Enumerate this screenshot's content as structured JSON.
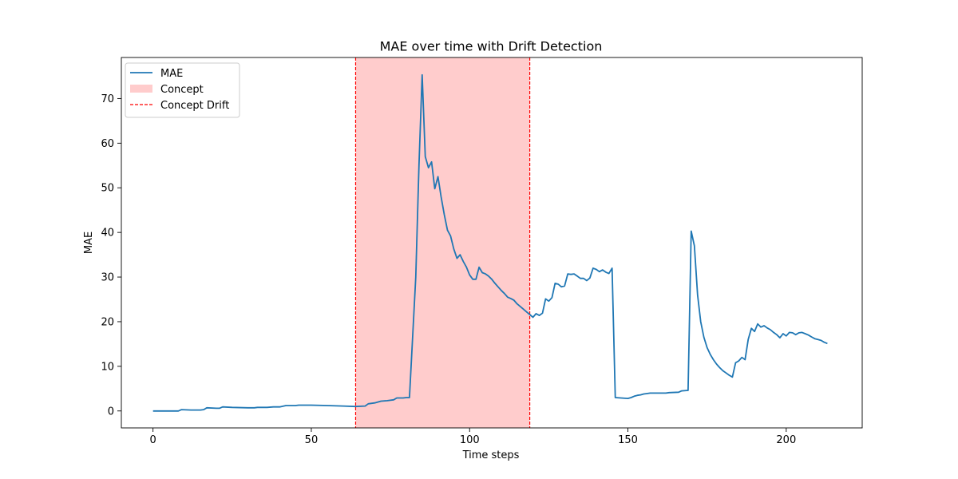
{
  "chart_data": {
    "type": "line",
    "title": "MAE over time with Drift Detection",
    "xlabel": "Time steps",
    "ylabel": "MAE",
    "xlim": [
      -10,
      224
    ],
    "ylim": [
      -3.8,
      79.2
    ],
    "xticks": [
      0,
      50,
      100,
      150,
      200
    ],
    "yticks": [
      0,
      10,
      20,
      30,
      40,
      50,
      60,
      70
    ],
    "grid": false,
    "legend_position": "top-left",
    "legend": {
      "mae": "MAE",
      "concept": "Concept",
      "drift": "Concept Drift"
    },
    "concept_region": {
      "start": 64,
      "end": 119,
      "color": "#ffcccc"
    },
    "drift_lines": [
      64,
      119
    ],
    "drift_color": "#ff0000",
    "series": [
      {
        "name": "MAE",
        "color": "#1f77b4",
        "points": [
          [
            0,
            0.0
          ],
          [
            4,
            0.0
          ],
          [
            8,
            0.0
          ],
          [
            9,
            0.3
          ],
          [
            12,
            0.2
          ],
          [
            15,
            0.2
          ],
          [
            16,
            0.3
          ],
          [
            17,
            0.7
          ],
          [
            20,
            0.6
          ],
          [
            21,
            0.6
          ],
          [
            22,
            0.9
          ],
          [
            25,
            0.8
          ],
          [
            30,
            0.7
          ],
          [
            32,
            0.7
          ],
          [
            33,
            0.8
          ],
          [
            36,
            0.8
          ],
          [
            38,
            0.9
          ],
          [
            40,
            0.9
          ],
          [
            42,
            1.2
          ],
          [
            45,
            1.2
          ],
          [
            46,
            1.3
          ],
          [
            50,
            1.3
          ],
          [
            55,
            1.2
          ],
          [
            60,
            1.1
          ],
          [
            64,
            1.0
          ],
          [
            67,
            1.1
          ],
          [
            68,
            1.6
          ],
          [
            70,
            1.8
          ],
          [
            72,
            2.2
          ],
          [
            74,
            2.3
          ],
          [
            76,
            2.5
          ],
          [
            77,
            2.9
          ],
          [
            79,
            2.9
          ],
          [
            80,
            3.0
          ],
          [
            81,
            3.0
          ],
          [
            83,
            30.0
          ],
          [
            84,
            55.0
          ],
          [
            85,
            75.3
          ],
          [
            86,
            57.0
          ],
          [
            87,
            54.5
          ],
          [
            88,
            55.8
          ],
          [
            89,
            49.8
          ],
          [
            90,
            52.5
          ],
          [
            91,
            48.0
          ],
          [
            92,
            44.0
          ],
          [
            93,
            40.5
          ],
          [
            94,
            39.2
          ],
          [
            95,
            36.3
          ],
          [
            96,
            34.2
          ],
          [
            97,
            35.0
          ],
          [
            98,
            33.5
          ],
          [
            99,
            32.2
          ],
          [
            100,
            30.5
          ],
          [
            101,
            29.5
          ],
          [
            102,
            29.5
          ],
          [
            103,
            32.2
          ],
          [
            104,
            31.0
          ],
          [
            105,
            30.7
          ],
          [
            106,
            30.2
          ],
          [
            107,
            29.5
          ],
          [
            108,
            28.6
          ],
          [
            109,
            27.8
          ],
          [
            110,
            27.0
          ],
          [
            111,
            26.3
          ],
          [
            112,
            25.5
          ],
          [
            113,
            25.2
          ],
          [
            114,
            24.8
          ],
          [
            115,
            24.0
          ],
          [
            116,
            23.4
          ],
          [
            117,
            22.8
          ],
          [
            118,
            22.2
          ],
          [
            119,
            21.6
          ],
          [
            120,
            21.0
          ],
          [
            121,
            21.8
          ],
          [
            122,
            21.4
          ],
          [
            123,
            21.9
          ],
          [
            124,
            25.1
          ],
          [
            125,
            24.6
          ],
          [
            126,
            25.4
          ],
          [
            127,
            28.6
          ],
          [
            128,
            28.4
          ],
          [
            129,
            27.8
          ],
          [
            130,
            28.0
          ],
          [
            131,
            30.7
          ],
          [
            132,
            30.6
          ],
          [
            133,
            30.7
          ],
          [
            134,
            30.2
          ],
          [
            135,
            29.7
          ],
          [
            136,
            29.7
          ],
          [
            137,
            29.2
          ],
          [
            138,
            29.8
          ],
          [
            139,
            32.0
          ],
          [
            140,
            31.7
          ],
          [
            141,
            31.2
          ],
          [
            142,
            31.6
          ],
          [
            143,
            31.1
          ],
          [
            144,
            30.8
          ],
          [
            145,
            32.0
          ],
          [
            146,
            3.0
          ],
          [
            150,
            2.8
          ],
          [
            151,
            3.0
          ],
          [
            152,
            3.3
          ],
          [
            153,
            3.5
          ],
          [
            154,
            3.6
          ],
          [
            155,
            3.8
          ],
          [
            156,
            3.9
          ],
          [
            157,
            4.0
          ],
          [
            162,
            4.0
          ],
          [
            163,
            4.1
          ],
          [
            166,
            4.2
          ],
          [
            167,
            4.5
          ],
          [
            169,
            4.6
          ],
          [
            170,
            40.3
          ],
          [
            171,
            37.0
          ],
          [
            172,
            26.0
          ],
          [
            173,
            20.0
          ],
          [
            174,
            16.5
          ],
          [
            175,
            14.2
          ],
          [
            176,
            12.7
          ],
          [
            177,
            11.5
          ],
          [
            178,
            10.5
          ],
          [
            179,
            9.7
          ],
          [
            180,
            9.0
          ],
          [
            181,
            8.5
          ],
          [
            182,
            8.0
          ],
          [
            183,
            7.6
          ],
          [
            184,
            10.8
          ],
          [
            185,
            11.2
          ],
          [
            186,
            12.0
          ],
          [
            187,
            11.5
          ],
          [
            188,
            16.0
          ],
          [
            189,
            18.5
          ],
          [
            190,
            17.8
          ],
          [
            191,
            19.5
          ],
          [
            192,
            18.8
          ],
          [
            193,
            19.1
          ],
          [
            194,
            18.6
          ],
          [
            195,
            18.2
          ],
          [
            196,
            17.6
          ],
          [
            197,
            17.1
          ],
          [
            198,
            16.4
          ],
          [
            199,
            17.3
          ],
          [
            200,
            16.8
          ],
          [
            201,
            17.6
          ],
          [
            202,
            17.5
          ],
          [
            203,
            17.1
          ],
          [
            204,
            17.5
          ],
          [
            205,
            17.6
          ],
          [
            206,
            17.3
          ],
          [
            207,
            17.0
          ],
          [
            208,
            16.6
          ],
          [
            209,
            16.2
          ],
          [
            210,
            16.0
          ],
          [
            211,
            15.8
          ],
          [
            212,
            15.4
          ],
          [
            213,
            15.1
          ]
        ]
      }
    ]
  }
}
